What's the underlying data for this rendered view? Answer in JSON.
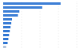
{
  "chart_data": {
    "type": "bar",
    "orientation": "horizontal",
    "categories": [
      null,
      null,
      null,
      null,
      null,
      null,
      null,
      null,
      null,
      null,
      null,
      null
    ],
    "values": [
      78,
      53,
      22,
      20,
      12,
      11,
      10,
      9,
      8,
      7,
      6,
      4
    ],
    "colors": [
      "#3d7fd6",
      "#3d7fd6",
      "#3d7fd6",
      "#3d7fd6",
      "#3d7fd6",
      "#3d7fd6",
      "#3d7fd6",
      "#3d7fd6",
      "#3d7fd6",
      "#3d7fd6",
      "#3d7fd6",
      "#b9c8dc"
    ],
    "xlim": [
      0,
      100
    ],
    "xticks": [
      0,
      25,
      50,
      75,
      100
    ],
    "grid": true,
    "tick_labels": false
  }
}
